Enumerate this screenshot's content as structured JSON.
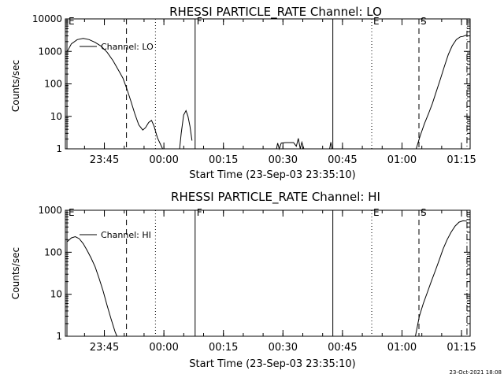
{
  "footer_timestamp": "23-Oct-2021 18:08",
  "chart_data": [
    {
      "type": "line",
      "title": "RHESSI PARTICLE_RATE Channel: LO",
      "xlabel": "Start Time (23-Sep-03 23:35:10)",
      "ylabel": "Counts/sec",
      "yscale": "log",
      "ylim": [
        1,
        10000
      ],
      "y_ticks": [
        1,
        10,
        100,
        1000,
        10000
      ],
      "y_tick_labels": [
        "1",
        "10",
        "100",
        "1000",
        "10000"
      ],
      "x_unit": "minutes after start",
      "xlim": [
        0,
        102
      ],
      "x_ticks": [
        9.83,
        24.83,
        39.83,
        54.83,
        69.83,
        84.83,
        99.83
      ],
      "x_tick_labels": [
        "23:45",
        "00:00",
        "00:15",
        "00:30",
        "00:45",
        "01:00",
        "01:15"
      ],
      "legend": {
        "label": "Channel: LO",
        "position": "top-left"
      },
      "markers": [
        {
          "label": "E",
          "x": 0.4,
          "style": "solid"
        },
        {
          "label": "",
          "x": 15.4,
          "style": "dashed"
        },
        {
          "label": "",
          "x": 22.7,
          "style": "dotted"
        },
        {
          "label": "F",
          "x": 32.7,
          "style": "solid"
        },
        {
          "label": "",
          "x": 67.4,
          "style": "solid"
        },
        {
          "label": "E",
          "x": 77.2,
          "style": "dotted"
        },
        {
          "label": "S",
          "x": 89.1,
          "style": "dashed"
        },
        {
          "label": "",
          "x": 101.2,
          "style": "dashdot"
        }
      ],
      "series": [
        {
          "segments": [
            [
              [
                0.5,
                1000
              ],
              [
                1.5,
                1700
              ],
              [
                3,
                2300
              ],
              [
                4.5,
                2500
              ],
              [
                6,
                2300
              ],
              [
                7.5,
                1900
              ],
              [
                9,
                1450
              ],
              [
                10.5,
                950
              ],
              [
                12,
                520
              ],
              [
                13.5,
                250
              ],
              [
                14.5,
                150
              ],
              [
                15.5,
                70
              ],
              [
                16.5,
                30
              ],
              [
                17.5,
                12
              ],
              [
                18.5,
                5.5
              ],
              [
                19.5,
                3.8
              ],
              [
                20.2,
                4.5
              ],
              [
                21,
                6.5
              ],
              [
                21.7,
                7.5
              ],
              [
                22.3,
                5.2
              ],
              [
                23.2,
                2.2
              ],
              [
                24.5,
                1
              ]
            ],
            [
              [
                28.8,
                1
              ],
              [
                29.2,
                3
              ],
              [
                29.8,
                11
              ],
              [
                30.4,
                15
              ],
              [
                30.9,
                10
              ],
              [
                31.4,
                5
              ],
              [
                31.9,
                1.8
              ]
            ],
            [
              [
                53.2,
                1
              ],
              [
                53.5,
                1.5
              ],
              [
                53.9,
                1
              ],
              [
                54.4,
                1.5
              ],
              [
                55.5,
                1.55
              ],
              [
                57.5,
                1.55
              ],
              [
                58.2,
                1.2
              ],
              [
                58.7,
                2.1
              ],
              [
                59.2,
                1
              ],
              [
                59.6,
                1.6
              ],
              [
                60.1,
                1
              ]
            ],
            [
              [
                66.6,
                1
              ],
              [
                66.9,
                1.6
              ],
              [
                67.2,
                1
              ]
            ],
            [
              [
                88.4,
                1
              ],
              [
                89.4,
                2.5
              ],
              [
                90.5,
                6
              ],
              [
                91.5,
                12
              ],
              [
                92.5,
                25
              ],
              [
                93.5,
                60
              ],
              [
                94.5,
                140
              ],
              [
                95.5,
                340
              ],
              [
                96.5,
                800
              ],
              [
                97.5,
                1500
              ],
              [
                98.5,
                2300
              ],
              [
                99.5,
                2800
              ],
              [
                100.2,
                2900
              ],
              [
                101.2,
                3200
              ]
            ]
          ]
        }
      ]
    },
    {
      "type": "line",
      "title": "RHESSI PARTICLE_RATE Channel: HI",
      "xlabel": "Start Time (23-Sep-03 23:35:10)",
      "ylabel": "Counts/sec",
      "yscale": "log",
      "ylim": [
        1,
        1000
      ],
      "y_ticks": [
        1,
        10,
        100,
        1000
      ],
      "y_tick_labels": [
        "1",
        "10",
        "100",
        "1000"
      ],
      "x_unit": "minutes after start",
      "xlim": [
        0,
        102
      ],
      "x_ticks": [
        9.83,
        24.83,
        39.83,
        54.83,
        69.83,
        84.83,
        99.83
      ],
      "x_tick_labels": [
        "23:45",
        "00:00",
        "00:15",
        "00:30",
        "00:45",
        "01:00",
        "01:15"
      ],
      "legend": {
        "label": "Channel: HI",
        "position": "top-left"
      },
      "markers": [
        {
          "label": "E",
          "x": 0.4,
          "style": "solid"
        },
        {
          "label": "",
          "x": 15.4,
          "style": "dashed"
        },
        {
          "label": "",
          "x": 22.7,
          "style": "dotted"
        },
        {
          "label": "F",
          "x": 32.7,
          "style": "solid"
        },
        {
          "label": "",
          "x": 67.4,
          "style": "solid"
        },
        {
          "label": "E",
          "x": 77.2,
          "style": "dotted"
        },
        {
          "label": "S",
          "x": 89.1,
          "style": "dashed"
        },
        {
          "label": "",
          "x": 101.2,
          "style": "dashdot"
        }
      ],
      "series": [
        {
          "segments": [
            [
              [
                0.5,
                180
              ],
              [
                1.5,
                220
              ],
              [
                2.5,
                235
              ],
              [
                3.5,
                210
              ],
              [
                4.5,
                160
              ],
              [
                5.5,
                110
              ],
              [
                6.5,
                72
              ],
              [
                7.5,
                45
              ],
              [
                8.5,
                24
              ],
              [
                9.5,
                12
              ],
              [
                10.5,
                5.5
              ],
              [
                11.5,
                2.6
              ],
              [
                12.5,
                1.3
              ],
              [
                13,
                1
              ]
            ],
            [
              [
                88.2,
                1
              ],
              [
                89.2,
                3
              ],
              [
                90.2,
                6
              ],
              [
                91.2,
                11
              ],
              [
                92.2,
                20
              ],
              [
                93.2,
                36
              ],
              [
                94.2,
                65
              ],
              [
                95.2,
                120
              ],
              [
                96.2,
                200
              ],
              [
                97.2,
                300
              ],
              [
                98.2,
                420
              ],
              [
                99.2,
                520
              ],
              [
                100.2,
                560
              ],
              [
                101.2,
                550
              ]
            ]
          ]
        }
      ]
    }
  ]
}
